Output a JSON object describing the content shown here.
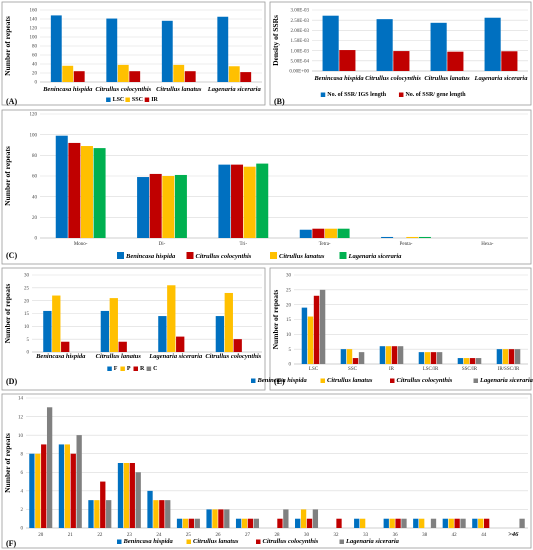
{
  "colors": {
    "blue": "#0070c0",
    "yellow": "#ffc000",
    "red": "#c00000",
    "green": "#00b050",
    "gray": "#808080"
  },
  "chart_data": [
    {
      "id": "A",
      "panel_label": "(A)",
      "type": "bar",
      "ylabel": "Number of repeats",
      "ylim": [
        0,
        160
      ],
      "yticks": [
        0,
        20,
        40,
        60,
        80,
        100,
        120,
        140,
        160
      ],
      "categories": [
        "Benincasa hispida",
        "Citrullus colocynthis",
        "Citrullus lanatus",
        "Lagenaria siceraria"
      ],
      "series": [
        {
          "name": "LSC",
          "color": "blue",
          "values": [
            148,
            141,
            136,
            145
          ]
        },
        {
          "name": "SSC",
          "color": "yellow",
          "values": [
            36,
            38,
            38,
            35
          ]
        },
        {
          "name": "IR",
          "color": "red",
          "values": [
            24,
            24,
            24,
            22
          ]
        }
      ],
      "grid": true,
      "legend": "bottom"
    },
    {
      "id": "B",
      "panel_label": "(B)",
      "type": "bar",
      "ylabel": "Density of SSRs",
      "ylim": [
        0,
        0.003
      ],
      "yticks": [
        "0.00E+00",
        "5.00E-04",
        "1.00E-03",
        "1.50E-03",
        "2.00E-03",
        "2.50E-03",
        "3.00E-03"
      ],
      "categories": [
        "Benincasa hispida",
        "Citrullus colocynthis",
        "Citrullus lanatus",
        "Lagenaria siceraria"
      ],
      "series": [
        {
          "name": "No. of SSR/ IGS length",
          "color": "blue",
          "values": [
            0.00272,
            0.00255,
            0.00237,
            0.00262
          ]
        },
        {
          "name": "No. of SSR/ gene length",
          "color": "red",
          "values": [
            0.00103,
            0.00098,
            0.00095,
            0.00097
          ]
        }
      ],
      "grid": true,
      "legend": "bottom"
    },
    {
      "id": "C",
      "panel_label": "(C)",
      "type": "bar",
      "ylabel": "Number of repeats",
      "ylim": [
        0,
        120
      ],
      "yticks": [
        0,
        20,
        40,
        60,
        80,
        100,
        120
      ],
      "categories": [
        "Mono-",
        "Di-",
        "Tri-",
        "Tetra-",
        "Penta-",
        "Hexa-"
      ],
      "series": [
        {
          "name": "Benincasa hispida",
          "color": "blue",
          "values": [
            99,
            59,
            71,
            8,
            1,
            0
          ]
        },
        {
          "name": "Citrullus colocynthis",
          "color": "red",
          "values": [
            92,
            62,
            71,
            9,
            0,
            0
          ]
        },
        {
          "name": "Citrullus lanatus",
          "color": "yellow",
          "values": [
            89,
            60,
            69,
            9,
            1,
            0
          ]
        },
        {
          "name": "Lagenaria siceraria",
          "color": "green",
          "values": [
            87,
            61,
            72,
            9,
            1,
            0
          ]
        }
      ],
      "grid": true,
      "legend": "bottom"
    },
    {
      "id": "D",
      "panel_label": "(D)",
      "type": "bar",
      "ylabel": "Number of repeats",
      "ylim": [
        0,
        30
      ],
      "yticks": [
        0,
        5,
        10,
        15,
        20,
        25,
        30
      ],
      "categories": [
        "Benincasa hispida",
        "Citrullus lanatus",
        "Lagenaria siceraria",
        "Citrullus colocynthis"
      ],
      "series": [
        {
          "name": "F",
          "color": "blue",
          "values": [
            16,
            16,
            14,
            14
          ]
        },
        {
          "name": "P",
          "color": "yellow",
          "values": [
            22,
            21,
            26,
            23
          ]
        },
        {
          "name": "R",
          "color": "red",
          "values": [
            4,
            4,
            6,
            5
          ]
        },
        {
          "name": "C",
          "color": "gray",
          "values": [
            0,
            0,
            0,
            0
          ]
        }
      ],
      "grid": true,
      "legend": "bottom"
    },
    {
      "id": "E",
      "panel_label": "(E)",
      "type": "bar",
      "ylabel": "Number of repeats",
      "ylim": [
        0,
        30
      ],
      "yticks": [
        0,
        5,
        10,
        15,
        20,
        25,
        30
      ],
      "categories": [
        "LSC",
        "SSC",
        "IR",
        "LSC/IR",
        "SSC/IR",
        "IR/SSC/IR"
      ],
      "series": [
        {
          "name": "Benincasa hispida",
          "color": "blue",
          "values": [
            19,
            5,
            6,
            4,
            2,
            5
          ]
        },
        {
          "name": "Citrullus lanatus",
          "color": "yellow",
          "values": [
            16,
            5,
            6,
            4,
            2,
            5
          ]
        },
        {
          "name": "Citrullus colocynthis",
          "color": "red",
          "values": [
            23,
            2,
            6,
            4,
            2,
            5
          ]
        },
        {
          "name": "Lagenaria siceraria",
          "color": "gray",
          "values": [
            25,
            4,
            6,
            4,
            2,
            5
          ]
        }
      ],
      "grid": true,
      "legend": "bottom"
    },
    {
      "id": "F",
      "panel_label": "(F)",
      "type": "bar",
      "ylabel": "Number of repeats",
      "ylim": [
        0,
        14
      ],
      "yticks": [
        0,
        2,
        4,
        6,
        8,
        10,
        12,
        14
      ],
      "categories": [
        "20",
        "21",
        "22",
        "23",
        "24",
        "25",
        "26",
        "27",
        "28",
        "30",
        "32",
        "33",
        "36",
        "38",
        "42",
        "44",
        ">46"
      ],
      "series": [
        {
          "name": "Benincasa hispida",
          "color": "blue",
          "values": [
            8,
            9,
            3,
            7,
            4,
            1,
            2,
            1,
            0,
            1,
            0,
            1,
            1,
            1,
            1,
            1,
            0
          ]
        },
        {
          "name": "Citrullus lanatus",
          "color": "yellow",
          "values": [
            8,
            9,
            3,
            7,
            3,
            1,
            2,
            1,
            0,
            2,
            0,
            1,
            1,
            1,
            1,
            1,
            0
          ]
        },
        {
          "name": "Citrullus colocynthis",
          "color": "red",
          "values": [
            9,
            8,
            5,
            7,
            3,
            1,
            2,
            1,
            1,
            1,
            1,
            0,
            1,
            0,
            1,
            1,
            0
          ]
        },
        {
          "name": "Lagenaria siceraria",
          "color": "gray",
          "values": [
            13,
            10,
            3,
            6,
            3,
            1,
            2,
            1,
            2,
            2,
            0,
            0,
            1,
            1,
            1,
            0,
            1
          ]
        }
      ],
      "grid": true,
      "legend": "bottom"
    }
  ]
}
